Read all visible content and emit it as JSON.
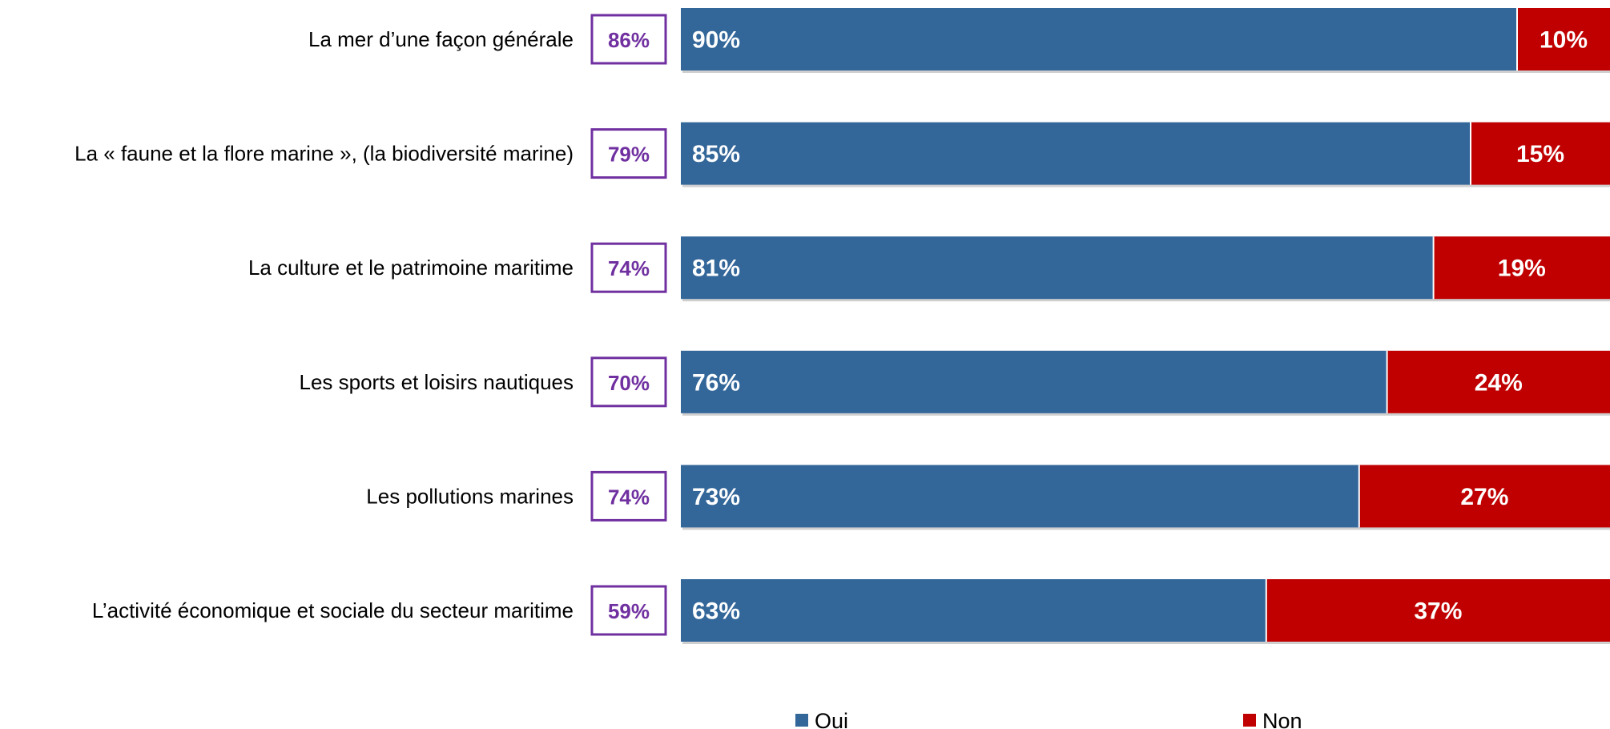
{
  "chart_data": {
    "type": "bar",
    "orientation": "horizontal",
    "stacked": true,
    "categories": [
      "La mer d’une façon générale",
      "La « faune et la flore marine », (la biodiversité marine)",
      "La culture et le patrimoine maritime",
      "Les sports et loisirs nautiques",
      "Les pollutions marines",
      "L’activité économique et sociale du secteur maritime"
    ],
    "series": [
      {
        "name": "Oui",
        "values": [
          90,
          85,
          81,
          76,
          73,
          63
        ],
        "color": "#336699"
      },
      {
        "name": "Non",
        "values": [
          10,
          15,
          19,
          24,
          27,
          37
        ],
        "color": "#c00000"
      }
    ],
    "comparison_values": [
      86,
      79,
      74,
      70,
      74,
      59
    ],
    "comparison_color": "#7030a0",
    "value_suffix": "%",
    "xlim": [
      0,
      100
    ],
    "legend_position": "bottom",
    "grid": false
  }
}
